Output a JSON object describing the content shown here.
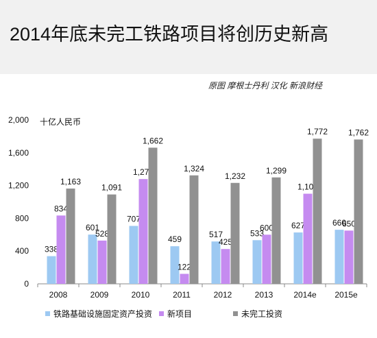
{
  "header": {
    "title": "2014年底未完工铁路项目将创历史新高",
    "source": "原图 摩根士丹利  汉化 新浪财经"
  },
  "chart_data": {
    "type": "bar",
    "unit_label": "十亿人民币",
    "categories": [
      "2008",
      "2009",
      "2010",
      "2011",
      "2012",
      "2013",
      "2014e",
      "2015e"
    ],
    "series": [
      {
        "name": "铁路基础设施固定资产投资",
        "color": "#9dc9f2",
        "values": [
          338,
          601,
          707,
          459,
          517,
          533,
          627,
          660
        ]
      },
      {
        "name": "新项目",
        "color": "#c58bf0",
        "values": [
          834,
          528,
          1279,
          122,
          425,
          600,
          1100,
          650
        ]
      },
      {
        "name": "未完工投资",
        "color": "#919191",
        "values": [
          1163,
          1091,
          1662,
          1324,
          1232,
          1299,
          1772,
          1762
        ]
      }
    ],
    "yticks": [
      "0",
      "400",
      "800",
      "1,200",
      "1,600",
      "2,000"
    ],
    "ylim": [
      0,
      2000
    ],
    "grid": false,
    "legend_position": "bottom"
  }
}
